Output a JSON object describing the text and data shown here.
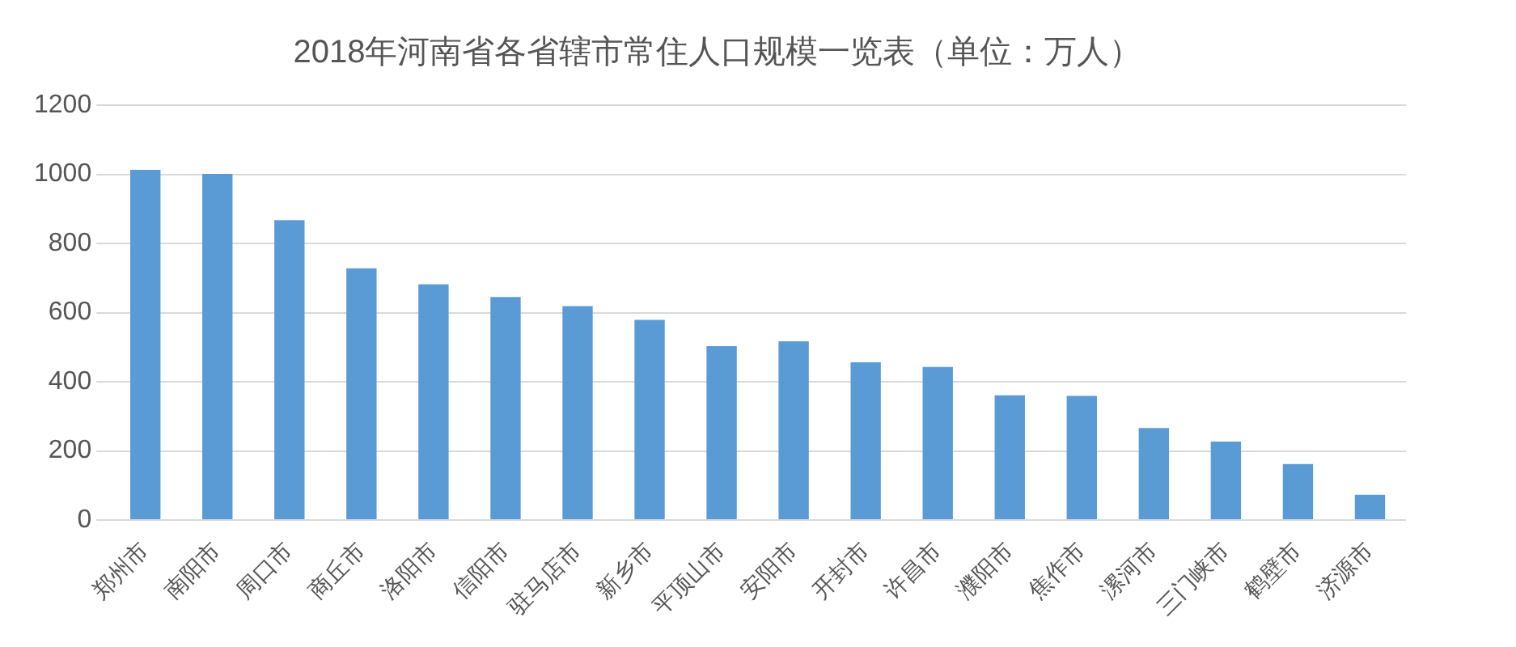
{
  "chart_data": {
    "type": "bar",
    "title": "2018年河南省各省辖市常住人口规模一览表（单位：万人）",
    "categories": [
      "郑州市",
      "南阳市",
      "周口市",
      "商丘市",
      "洛阳市",
      "信阳市",
      "驻马店市",
      "新乡市",
      "平顶山市",
      "安阳市",
      "开封市",
      "许昌市",
      "濮阳市",
      "焦作市",
      "漯河市",
      "三门峡市",
      "鹤壁市",
      "济源市"
    ],
    "values": [
      1013,
      1001,
      867,
      728,
      682,
      645,
      619,
      579,
      503,
      517,
      456,
      443,
      361,
      359,
      266,
      227,
      162,
      73
    ],
    "color": "#5b9bd5",
    "ylim": [
      0,
      1200
    ],
    "yticks": [
      0,
      200,
      400,
      600,
      800,
      1000,
      1200
    ],
    "grid": "y"
  }
}
